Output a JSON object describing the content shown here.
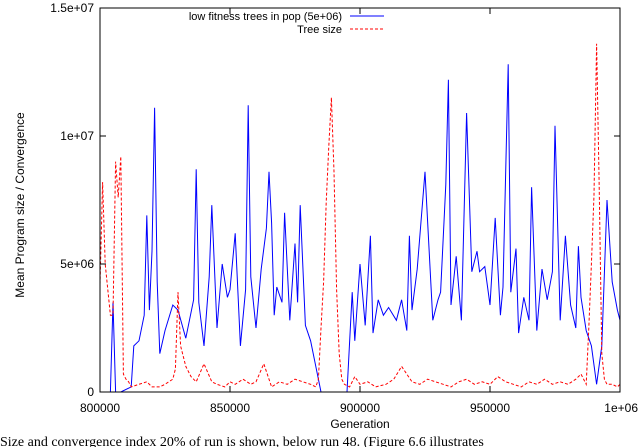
{
  "chart_data": {
    "type": "line",
    "xlabel": "Generation",
    "ylabel": "Mean Program size / Convergence",
    "xlim": [
      800000,
      1000000
    ],
    "ylim": [
      0,
      15000000
    ],
    "x_ticks": [
      800000,
      850000,
      900000,
      950000,
      1000000
    ],
    "x_tick_labels": [
      "800000",
      "850000",
      "900000",
      "950000",
      "1e+06"
    ],
    "y_ticks": [
      0,
      5000000,
      10000000,
      15000000
    ],
    "y_tick_labels": [
      "0",
      "5e+06",
      "1e+07",
      "1.5e+07"
    ],
    "grid": false,
    "legend_position": "top",
    "series": [
      {
        "name": "low fitness trees in pop (5e+06)",
        "color": "#0000ff",
        "style": "solid",
        "x": [
          800000,
          804000,
          805000,
          806000,
          808000,
          812000,
          813000,
          815000,
          817000,
          818000,
          819000,
          820000,
          821000,
          822000,
          823000,
          825000,
          828000,
          830000,
          833000,
          836000,
          837000,
          838000,
          840000,
          842000,
          843000,
          845000,
          847000,
          849000,
          850000,
          852000,
          854000,
          856000,
          857000,
          858000,
          860000,
          862000,
          864000,
          865000,
          866000,
          867000,
          868000,
          870000,
          871000,
          873000,
          875000,
          876000,
          877000,
          879000,
          881000,
          884000,
          885000,
          889000,
          892000,
          893000,
          895000,
          897000,
          898000,
          900000,
          902000,
          904000,
          905000,
          907000,
          909000,
          911000,
          914000,
          916000,
          918000,
          919000,
          920000,
          922000,
          925000,
          928000,
          930000,
          931000,
          933000,
          934000,
          935000,
          937000,
          939000,
          941000,
          943000,
          945000,
          946000,
          948000,
          950000,
          952000,
          954000,
          955000,
          957000,
          958000,
          960000,
          961000,
          963000,
          965000,
          966000,
          968000,
          970000,
          972000,
          974000,
          975000,
          977000,
          979000,
          981000,
          983000,
          984000,
          985000,
          987000,
          989000,
          991000,
          993000,
          995000,
          997000,
          999000,
          1000000
        ],
        "y": [
          0,
          0,
          3500000,
          0,
          0,
          200000,
          1800000,
          2000000,
          3000000,
          6900000,
          3200000,
          5500000,
          11100000,
          4300000,
          1500000,
          2400000,
          3400000,
          3200000,
          2100000,
          3600000,
          8700000,
          3500000,
          1800000,
          4500000,
          7300000,
          2500000,
          5000000,
          3700000,
          4000000,
          6200000,
          1800000,
          4000000,
          11200000,
          4500000,
          2500000,
          4800000,
          6400000,
          8600000,
          6600000,
          3000000,
          4100000,
          3500000,
          7000000,
          2800000,
          5800000,
          3500000,
          7300000,
          2600000,
          2000000,
          500000,
          0,
          0,
          0,
          0,
          0,
          3900000,
          2000000,
          5000000,
          2600000,
          6100000,
          2300000,
          3600000,
          3000000,
          3300000,
          2800000,
          3600000,
          2400000,
          6100000,
          3200000,
          4800000,
          8600000,
          2800000,
          3600000,
          3900000,
          8100000,
          12200000,
          3400000,
          5300000,
          2800000,
          10900000,
          4700000,
          5500000,
          4700000,
          4900000,
          3400000,
          6800000,
          3000000,
          4100000,
          12800000,
          3900000,
          5600000,
          2300000,
          3700000,
          2800000,
          8000000,
          2400000,
          4800000,
          3600000,
          4700000,
          10400000,
          2800000,
          6100000,
          3400000,
          2500000,
          5700000,
          3700000,
          2400000,
          1800000,
          300000,
          1800000,
          7500000,
          4300000,
          3200000,
          2800000
        ]
      },
      {
        "name": "Tree size",
        "color": "#ff0000",
        "style": "dashed",
        "x": [
          800000,
          801000,
          802000,
          803000,
          804000,
          805000,
          806000,
          807000,
          808000,
          809000,
          810000,
          811000,
          812000,
          815000,
          818000,
          820000,
          823000,
          825000,
          828000,
          829000,
          830000,
          831000,
          833000,
          835000,
          837000,
          840000,
          843000,
          845000,
          848000,
          850000,
          852000,
          855000,
          858000,
          860000,
          863000,
          866000,
          869000,
          872000,
          875000,
          878000,
          881000,
          883000,
          884000,
          885000,
          886000,
          887000,
          888000,
          889000,
          890000,
          891000,
          892000,
          893000,
          894000,
          896000,
          898000,
          900000,
          903000,
          906000,
          910000,
          913000,
          916000,
          920000,
          923000,
          926000,
          929000,
          932000,
          935000,
          938000,
          941000,
          944000,
          947000,
          950000,
          953000,
          956000,
          959000,
          962000,
          965000,
          968000,
          971000,
          974000,
          977000,
          980000,
          983000,
          985000,
          987000,
          988000,
          989000,
          990000,
          991000,
          992000,
          993000,
          994000,
          995000,
          997000,
          999000,
          1000000
        ],
        "y": [
          4200000,
          8200000,
          5000000,
          4000000,
          3000000,
          3000000,
          9000000,
          7600000,
          9200000,
          700000,
          500000,
          400000,
          200000,
          300000,
          400000,
          200000,
          200000,
          300000,
          500000,
          900000,
          3900000,
          1800000,
          1000000,
          600000,
          400000,
          1100000,
          400000,
          300000,
          200000,
          400000,
          300000,
          500000,
          300000,
          400000,
          1100000,
          200000,
          400000,
          300000,
          500000,
          400000,
          300000,
          200000,
          500000,
          2500000,
          4300000,
          7400000,
          9600000,
          11500000,
          8600000,
          4000000,
          1500000,
          500000,
          300000,
          200000,
          600000,
          300000,
          400000,
          200000,
          300000,
          500000,
          1000000,
          400000,
          300000,
          500000,
          400000,
          300000,
          200000,
          400000,
          500000,
          300000,
          400000,
          300000,
          600000,
          400000,
          300000,
          200000,
          400000,
          300000,
          500000,
          300000,
          400000,
          300000,
          500000,
          700000,
          300000,
          2500000,
          5000000,
          7700000,
          13600000,
          8000000,
          1500000,
          500000,
          300000,
          300000,
          200000,
          300000
        ]
      }
    ]
  },
  "caption": "Size and convergence index 20% of run is shown, below run 48. (Figure 6.6 illustrates"
}
